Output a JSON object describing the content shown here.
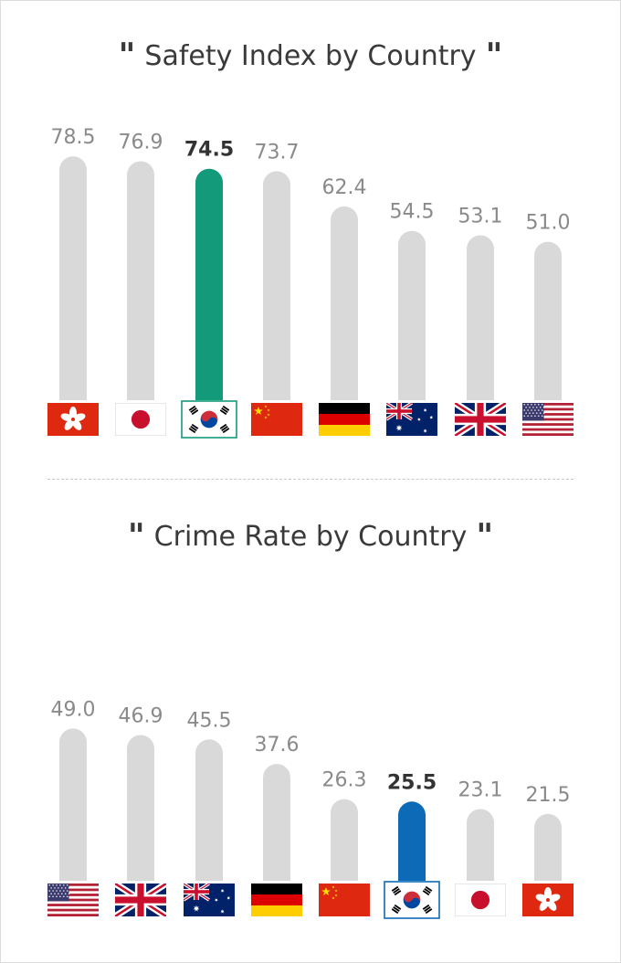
{
  "chart_data": [
    {
      "type": "bar",
      "title": "Safety Index by Country",
      "categories": [
        "Hong Kong",
        "Japan",
        "South Korea",
        "China",
        "Germany",
        "Australia",
        "United Kingdom",
        "United States"
      ],
      "flags": [
        "hk",
        "jp",
        "kr",
        "cn",
        "de",
        "au",
        "gb",
        "us"
      ],
      "values": [
        78.5,
        76.9,
        74.5,
        73.7,
        62.4,
        54.5,
        53.1,
        51.0
      ],
      "highlight_index": 2,
      "highlight_color": "#139a7a",
      "bar_color": "#d9d9d9"
    },
    {
      "type": "bar",
      "title": "Crime Rate by Country",
      "categories": [
        "United States",
        "United Kingdom",
        "Australia",
        "Germany",
        "China",
        "South Korea",
        "Japan",
        "Hong Kong"
      ],
      "flags": [
        "us",
        "gb",
        "au",
        "de",
        "cn",
        "kr",
        "jp",
        "hk"
      ],
      "values": [
        49.0,
        46.9,
        45.5,
        37.6,
        26.3,
        25.5,
        23.1,
        21.5
      ],
      "highlight_index": 5,
      "highlight_color": "#0d6ab7",
      "bar_color": "#d9d9d9"
    }
  ]
}
